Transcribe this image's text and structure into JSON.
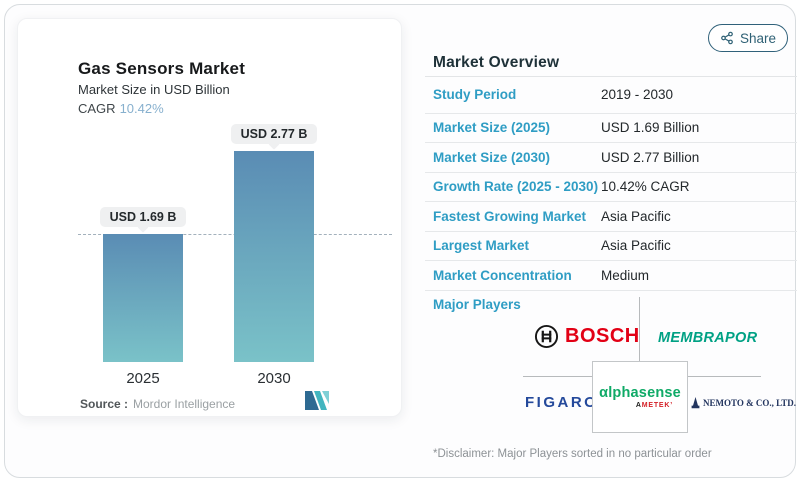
{
  "share": {
    "label": "Share"
  },
  "chart_panel": {
    "title": "Gas Sensors Market",
    "subtitle": "Market Size in USD Billion",
    "cagr_label": "CAGR",
    "cagr_value": "10.42%",
    "source_label": "Source :",
    "source_value": "Mordor Intelligence"
  },
  "chart_data": {
    "type": "bar",
    "title": "Gas Sensors Market",
    "subtitle": "Market Size in USD Billion",
    "unit": "USD Billion",
    "categories": [
      "2025",
      "2030"
    ],
    "values": [
      1.69,
      2.77
    ],
    "bar_labels": [
      "USD 1.69 B",
      "USD 2.77 B"
    ],
    "cagr": "10.42%",
    "baseline_marker": 1.69,
    "ylim": [
      0,
      3.2
    ],
    "grid": false,
    "legend": false,
    "bar_gradient": [
      "#5a8cb4",
      "#7ac2c8"
    ]
  },
  "overview": {
    "heading": "Market Overview",
    "rows": [
      {
        "label": "Study Period",
        "value": "2019 - 2030"
      },
      {
        "label": "Market Size (2025)",
        "value": "USD 1.69 Billion"
      },
      {
        "label": "Market Size (2030)",
        "value": "USD 2.77 Billion"
      },
      {
        "label": "Growth Rate (2025 - 2030)",
        "value": "10.42% CAGR"
      },
      {
        "label": "Fastest Growing Market",
        "value": "Asia Pacific"
      },
      {
        "label": "Largest Market",
        "value": "Asia Pacific"
      },
      {
        "label": "Market Concentration",
        "value": "Medium"
      }
    ],
    "major_players_label": "Major Players",
    "disclaimer": "*Disclaimer: Major Players sorted in no particular order"
  },
  "logos": {
    "bosch": "BOSCH",
    "membrapor": "MEMBRAPOR",
    "figaro": "FIGARO",
    "alphasense": "αlphasense",
    "ametek": "AMETEK’",
    "nemoto": "NEMOTO & CO., LTD."
  },
  "colors": {
    "accent_teal": "#2f9dc4",
    "cagr_blue": "#87b0ce",
    "bar_top": "#5a8cb4",
    "bar_bottom": "#7ac2c8",
    "bosch_red": "#e20015",
    "membrapor_green": "#00a184",
    "figaro_blue": "#24499b",
    "alphasense_green": "#0faa67",
    "ametek_red": "#d42027",
    "nemoto_navy": "#23355f",
    "share_teal": "#2f6175"
  }
}
